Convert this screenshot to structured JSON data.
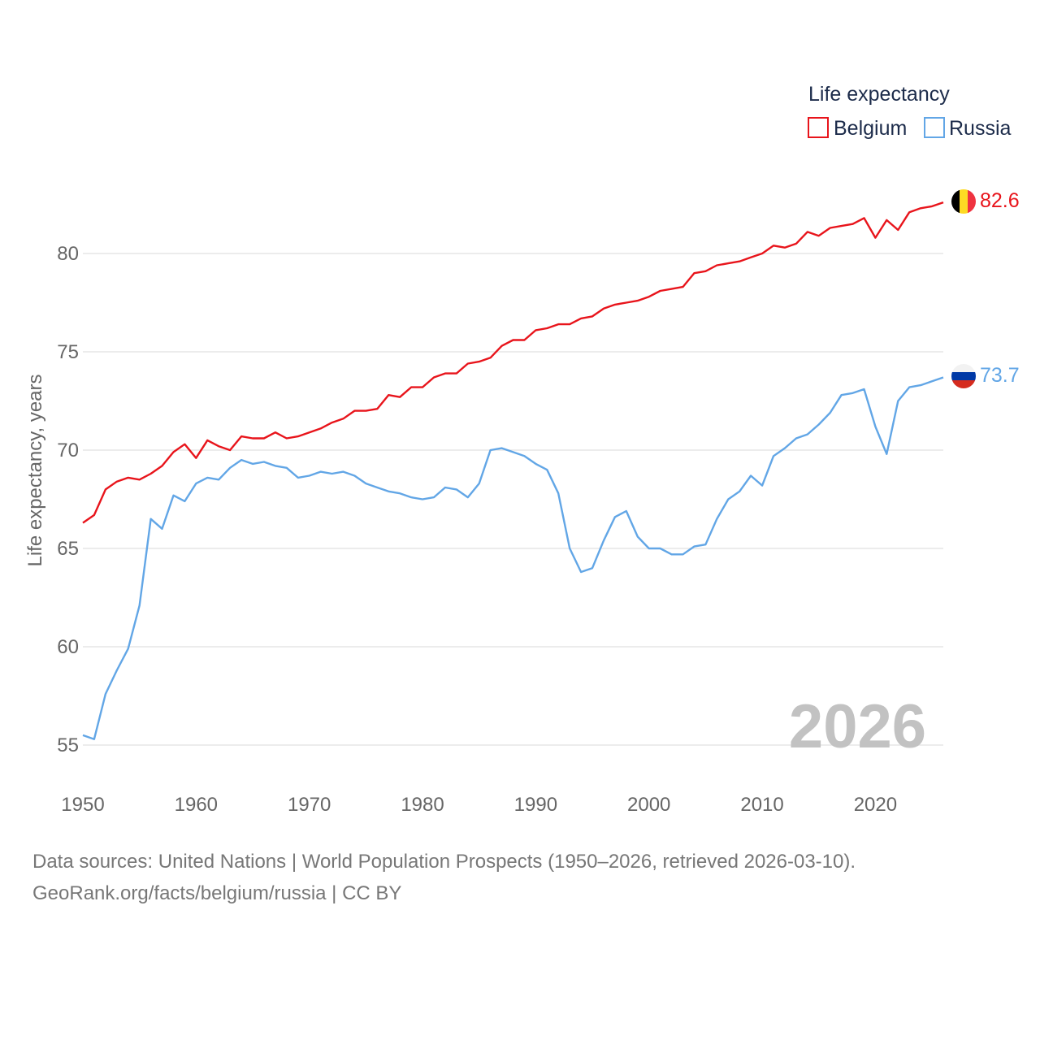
{
  "chart_data": {
    "type": "line",
    "legend_title": "Life expectancy",
    "ylabel": "Life expectancy, years",
    "xlabel": "",
    "xlim": [
      1950,
      2026
    ],
    "ylim": [
      53.5,
      83.5
    ],
    "x_ticks": [
      1950,
      1960,
      1970,
      1980,
      1990,
      2000,
      2010,
      2020
    ],
    "y_ticks": [
      55,
      60,
      65,
      70,
      75,
      80
    ],
    "year_label": "2026",
    "series": [
      {
        "name": "Belgium",
        "color": "#e8141b",
        "end_label": "82.6",
        "x_start": 1950,
        "values": [
          66.3,
          66.7,
          68.0,
          68.4,
          68.6,
          68.5,
          68.8,
          69.2,
          69.9,
          70.3,
          69.6,
          70.5,
          70.2,
          70.0,
          70.7,
          70.6,
          70.6,
          70.9,
          70.6,
          70.7,
          70.9,
          71.1,
          71.4,
          71.6,
          72.0,
          72.0,
          72.1,
          72.8,
          72.7,
          73.2,
          73.2,
          73.7,
          73.9,
          73.9,
          74.4,
          74.5,
          74.7,
          75.3,
          75.6,
          75.6,
          76.1,
          76.2,
          76.4,
          76.4,
          76.7,
          76.8,
          77.2,
          77.4,
          77.5,
          77.6,
          77.8,
          78.1,
          78.2,
          78.3,
          79.0,
          79.1,
          79.4,
          79.5,
          79.6,
          79.8,
          80.0,
          80.4,
          80.3,
          80.5,
          81.1,
          80.9,
          81.3,
          81.4,
          81.5,
          81.8,
          80.8,
          81.7,
          81.2,
          82.1,
          82.3,
          82.4,
          82.6
        ]
      },
      {
        "name": "Russia",
        "color": "#62a6e6",
        "end_label": "73.7",
        "x_start": 1950,
        "values": [
          55.5,
          55.3,
          57.6,
          58.8,
          59.9,
          62.1,
          66.5,
          66.0,
          67.7,
          67.4,
          68.3,
          68.6,
          68.5,
          69.1,
          69.5,
          69.3,
          69.4,
          69.2,
          69.1,
          68.6,
          68.7,
          68.9,
          68.8,
          68.9,
          68.7,
          68.3,
          68.1,
          67.9,
          67.8,
          67.6,
          67.5,
          67.6,
          68.1,
          68.0,
          67.6,
          68.3,
          70.0,
          70.1,
          69.9,
          69.7,
          69.3,
          69.0,
          67.8,
          65.0,
          63.8,
          64.0,
          65.4,
          66.6,
          66.9,
          65.6,
          65.0,
          65.0,
          64.7,
          64.7,
          65.1,
          65.2,
          66.5,
          67.5,
          67.9,
          68.7,
          68.2,
          69.7,
          70.1,
          70.6,
          70.8,
          71.3,
          71.9,
          72.8,
          72.9,
          73.1,
          71.2,
          69.8,
          72.5,
          73.2,
          73.3,
          73.5,
          73.7
        ]
      }
    ]
  },
  "footer": {
    "source": "Data sources: United Nations | World Population Prospects (1950–2026, retrieved 2026-03-10).",
    "credit": "GeoRank.org/facts/belgium/russia | CC BY"
  }
}
